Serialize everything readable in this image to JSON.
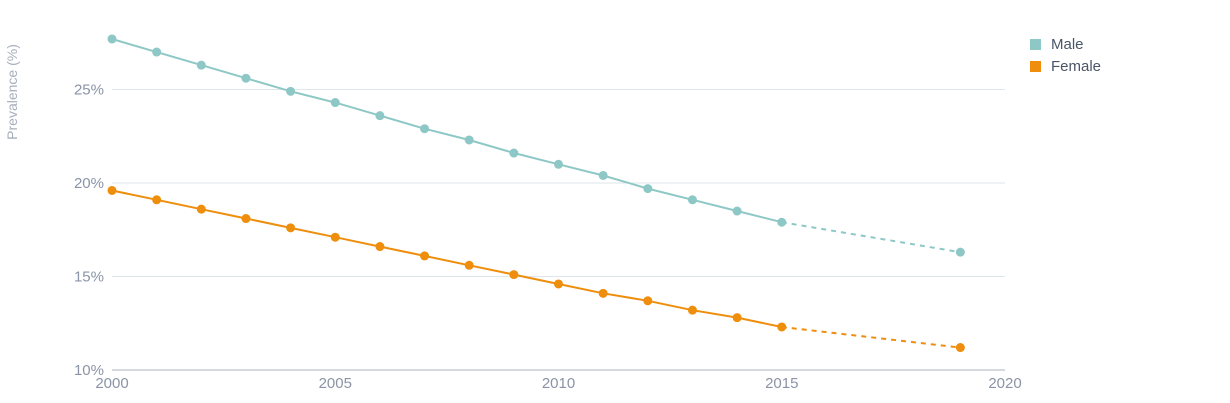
{
  "chart_data": {
    "type": "line",
    "ylabel": "Prevalence (%)",
    "xlabel": "",
    "xlim": [
      2000,
      2020
    ],
    "ylim": [
      10,
      28.5
    ],
    "xticks": [
      2000,
      2005,
      2010,
      2015,
      2020
    ],
    "yticks": [
      10,
      15,
      20,
      25
    ],
    "ytick_labels": [
      "10%",
      "15%",
      "20%",
      "25%"
    ],
    "grid": "horizontal",
    "legend_position": "top-right",
    "series": [
      {
        "name": "Male",
        "color": "#8ec8c6",
        "x": [
          2000,
          2001,
          2002,
          2003,
          2004,
          2005,
          2006,
          2007,
          2008,
          2009,
          2010,
          2011,
          2012,
          2013,
          2014,
          2015
        ],
        "values": [
          27.7,
          27.0,
          26.3,
          25.6,
          24.9,
          24.3,
          23.6,
          22.9,
          22.3,
          21.6,
          21.0,
          20.4,
          19.7,
          19.1,
          18.5,
          17.9
        ],
        "projected_x": [
          2015,
          2019
        ],
        "projected_values": [
          17.9,
          16.3
        ]
      },
      {
        "name": "Female",
        "color": "#ee8e0c",
        "x": [
          2000,
          2001,
          2002,
          2003,
          2004,
          2005,
          2006,
          2007,
          2008,
          2009,
          2010,
          2011,
          2012,
          2013,
          2014,
          2015
        ],
        "values": [
          19.6,
          19.1,
          18.6,
          18.1,
          17.6,
          17.1,
          16.6,
          16.1,
          15.6,
          15.1,
          14.6,
          14.1,
          13.7,
          13.2,
          12.8,
          12.3
        ],
        "projected_x": [
          2015,
          2019
        ],
        "projected_values": [
          12.3,
          11.2
        ]
      }
    ]
  }
}
